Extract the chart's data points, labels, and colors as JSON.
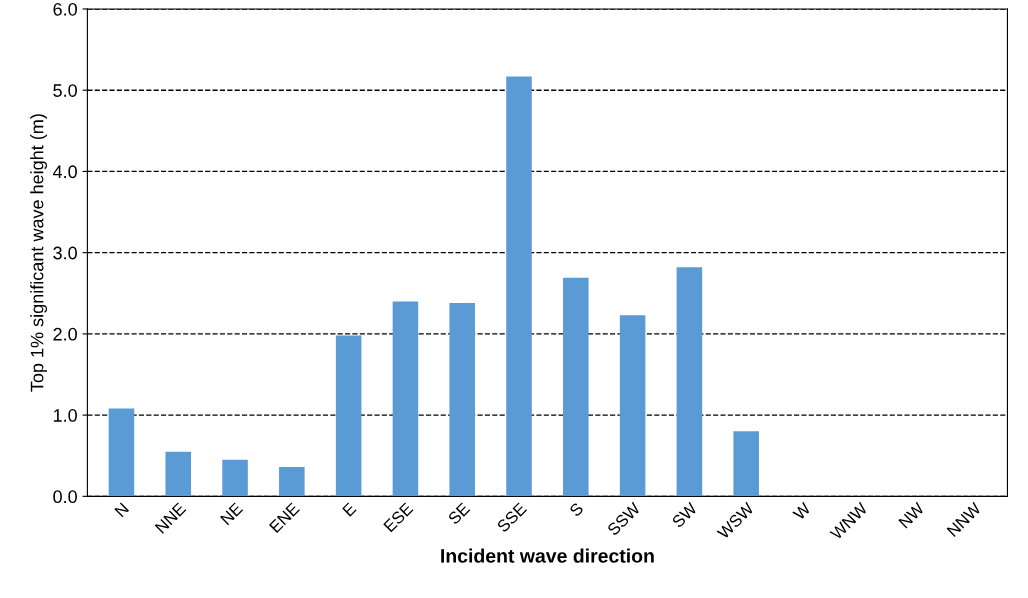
{
  "chart_data": {
    "type": "bar",
    "xlabel": "Incident wave direction",
    "ylabel": "Top 1% significant wave height (m)",
    "categories": [
      "N",
      "NNE",
      "NE",
      "ENE",
      "E",
      "ESE",
      "SE",
      "SSE",
      "S",
      "SSW",
      "SW",
      "WSW",
      "W",
      "WNW",
      "NW",
      "NNW"
    ],
    "values": [
      1.08,
      0.55,
      0.45,
      0.36,
      1.98,
      2.4,
      2.38,
      5.17,
      2.69,
      2.23,
      2.82,
      0.8,
      0,
      0,
      0,
      0
    ],
    "color": "#5b9bd5",
    "ylim": [
      0,
      6
    ],
    "yticks": [
      {
        "value": 0,
        "label": "0.0"
      },
      {
        "value": 1,
        "label": "1.0"
      },
      {
        "value": 2,
        "label": "2.0"
      },
      {
        "value": 3,
        "label": "3.0"
      },
      {
        "value": 4,
        "label": "4.0"
      },
      {
        "value": 5,
        "label": "5.0"
      },
      {
        "value": 6,
        "label": "6.0"
      }
    ],
    "grid": "y",
    "line_style": "dashed"
  }
}
